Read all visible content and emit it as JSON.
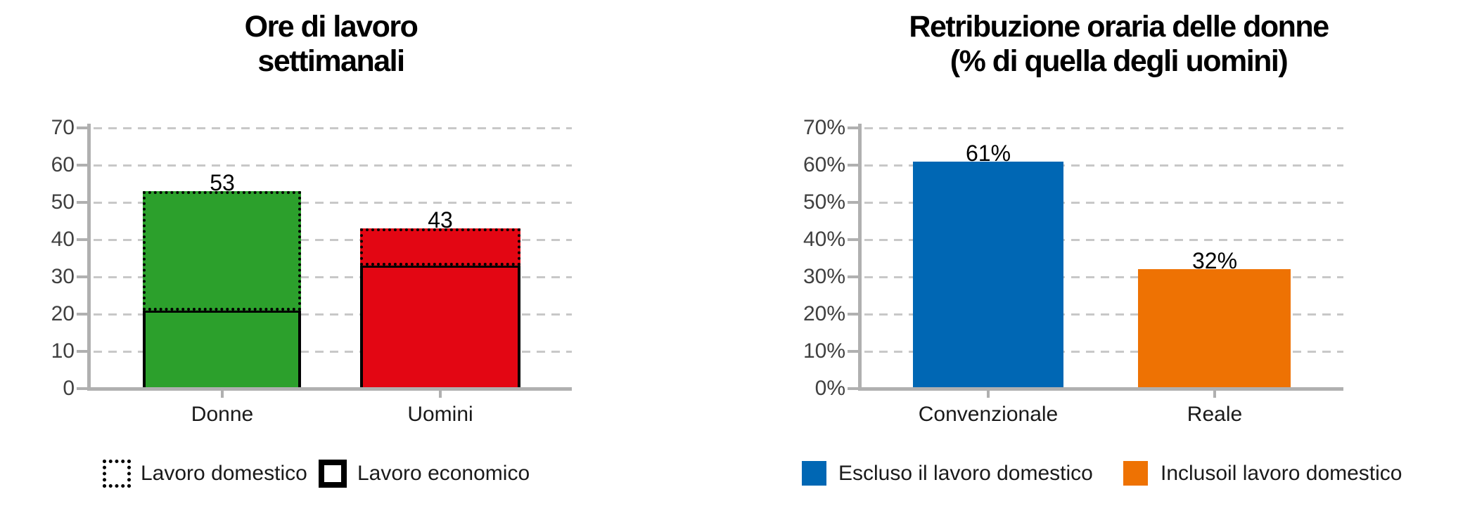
{
  "page": {
    "background": "#ffffff"
  },
  "colors": {
    "grid": "#c8c8c8",
    "axis": "#b0b0b0",
    "tick_text": "#404040",
    "category_text": "#1a1a1a",
    "value_text": "#000000",
    "outline": "#000000"
  },
  "chart_data": [
    {
      "type": "bar",
      "variant": "stacked-outlined",
      "title": "Ore di lavoro\nsettimanali",
      "categories": [
        "Donne",
        "Uomini"
      ],
      "series": [
        {
          "name": "Lavoro economico",
          "values": [
            21,
            33
          ],
          "outline": "solid"
        },
        {
          "name": "Lavoro domestico",
          "values": [
            32,
            10
          ],
          "outline": "dotted"
        }
      ],
      "totals": [
        53,
        43
      ],
      "total_labels": [
        "53",
        "43"
      ],
      "bar_colors": [
        "#2ca02c",
        "#e30613"
      ],
      "ylim": [
        0,
        70
      ],
      "ytick_step": 10,
      "ytick_labels": [
        "0",
        "10",
        "20",
        "30",
        "40",
        "50",
        "60",
        "70"
      ],
      "grid": "dashed-horizontal",
      "legend_position": "bottom",
      "legend": [
        {
          "label": "Lavoro domestico",
          "swatch": "dotted-outline"
        },
        {
          "label": "Lavoro economico",
          "swatch": "solid-outline"
        }
      ]
    },
    {
      "type": "bar",
      "variant": "simple",
      "title": "Retribuzione oraria delle donne\n(% di quella degli uomini)",
      "categories": [
        "Convenzionale",
        "Reale"
      ],
      "values": [
        61,
        32
      ],
      "value_labels": [
        "61%",
        "32%"
      ],
      "bar_colors": [
        "#0067b4",
        "#ee7203"
      ],
      "ylim": [
        0,
        70
      ],
      "ytick_step": 10,
      "ytick_labels": [
        "0%",
        "10%",
        "20%",
        "30%",
        "40%",
        "50%",
        "60%",
        "70%"
      ],
      "grid": "dashed-horizontal",
      "legend_position": "bottom",
      "legend": [
        {
          "label": "Escluso il lavoro domestico",
          "color": "#0067b4"
        },
        {
          "label": "Inclusoil lavoro domestico",
          "color": "#ee7203"
        }
      ]
    }
  ]
}
